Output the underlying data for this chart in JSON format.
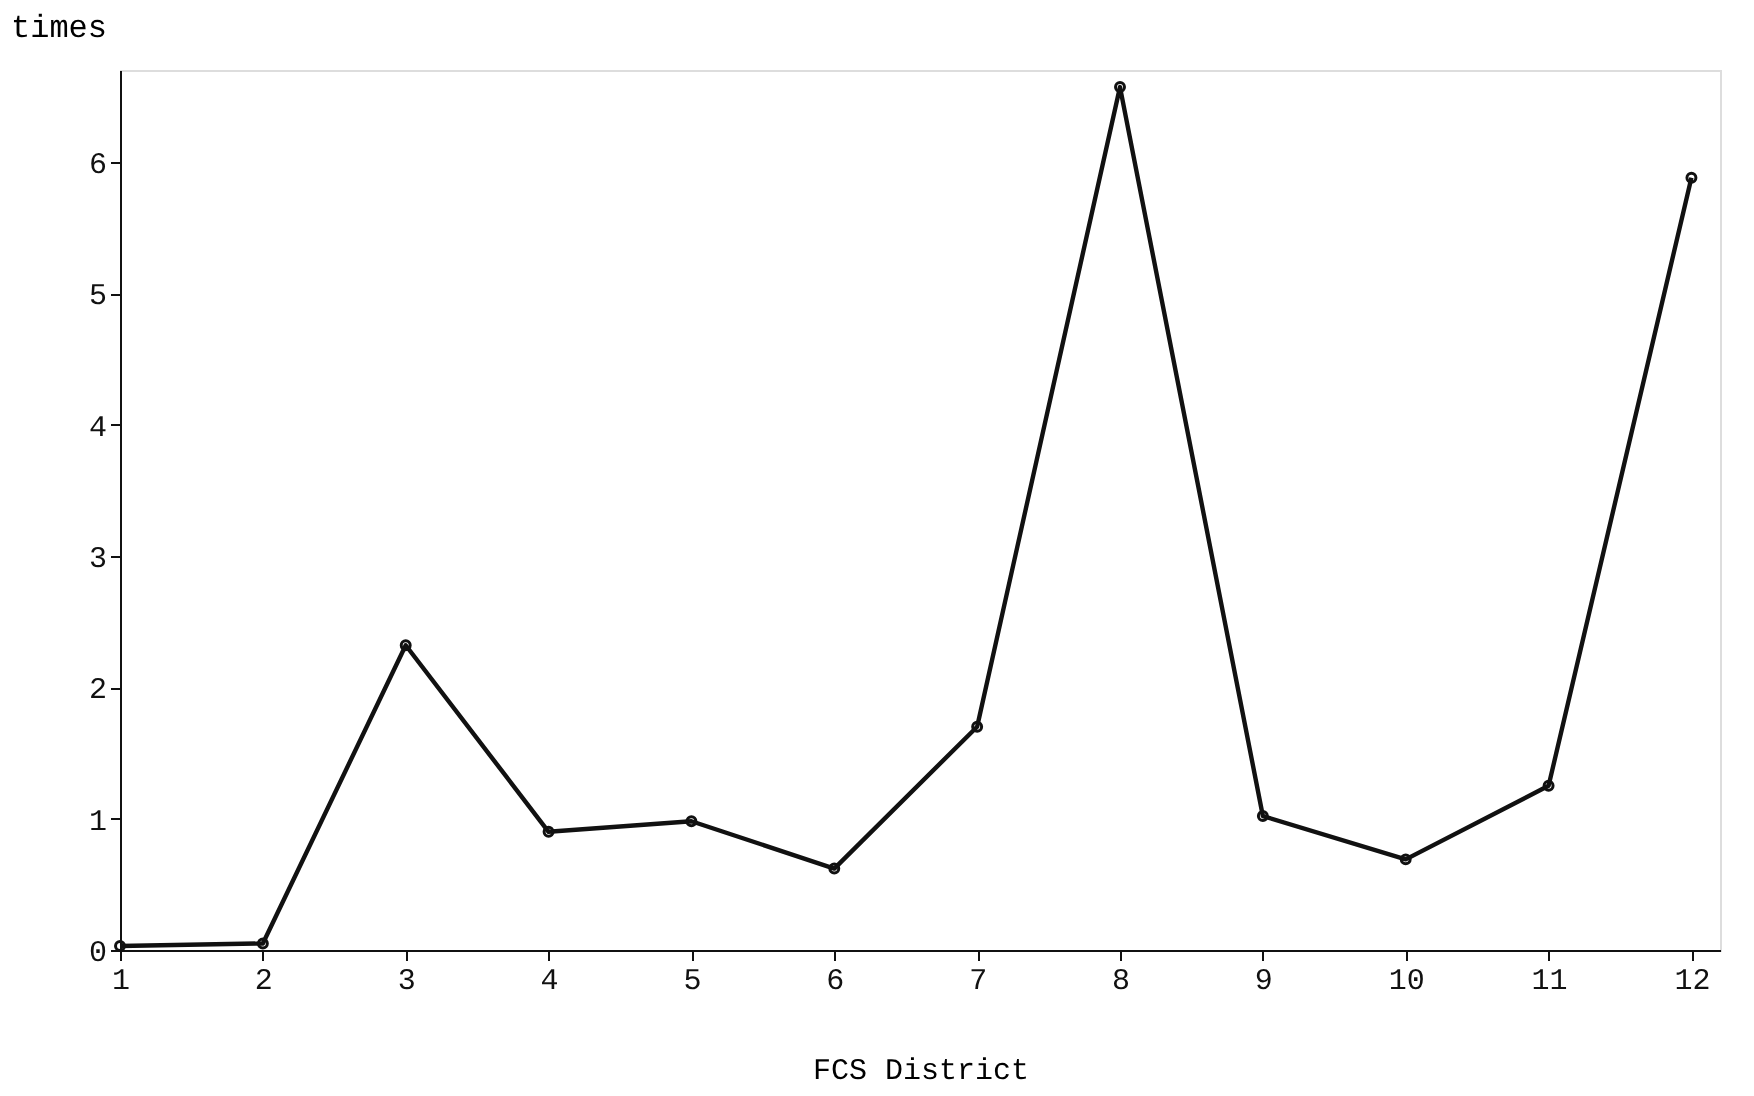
{
  "chart_data": {
    "type": "line",
    "xlabel": "FCS District",
    "ylabel": "times",
    "x": [
      1,
      2,
      3,
      4,
      5,
      6,
      7,
      8,
      9,
      10,
      11,
      12
    ],
    "series": [
      {
        "color": "#111111",
        "values": [
          0.03,
          0.05,
          2.32,
          0.9,
          0.98,
          0.62,
          1.7,
          6.57,
          1.02,
          0.69,
          1.25,
          5.88
        ]
      }
    ],
    "xlim": [
      1,
      12.2
    ],
    "xticks": [
      1,
      2,
      3,
      4,
      5,
      6,
      7,
      8,
      9,
      10,
      11,
      12
    ],
    "ylim": [
      0,
      6.7
    ],
    "yticks": [
      0,
      1,
      2,
      3,
      4,
      5,
      6
    ],
    "grid": false,
    "legend": false,
    "marker": "circle",
    "line_style": "solid"
  }
}
